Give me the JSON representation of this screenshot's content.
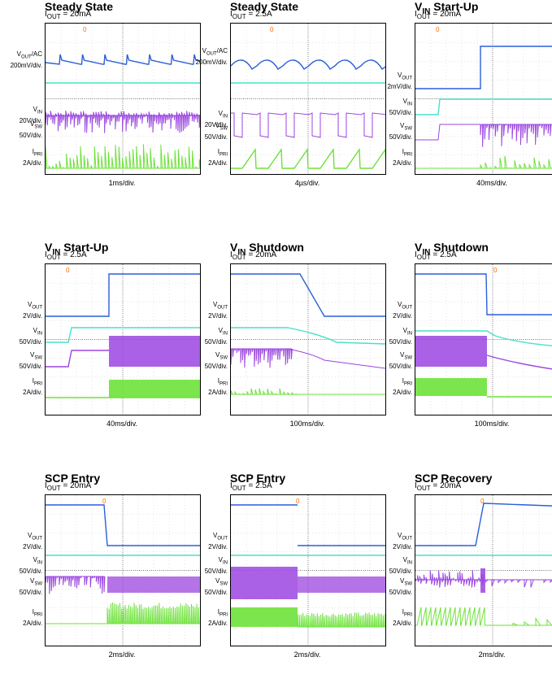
{
  "colors": {
    "vout": "#2b5fd9",
    "vin": "#49e0c8",
    "vsw": "#9b45e0",
    "ipri": "#6ee23a",
    "trigger": "#ff6a00",
    "grid": "#555555"
  },
  "chart_data": [
    {
      "type": "line",
      "title": "Steady State",
      "subtitle": "IOUT = 20mA",
      "timebase": "1ms/div.",
      "labels": {
        "vout": "VOUT/AC\n200mV/div.",
        "vin": "VIN\n20V/div.",
        "vsw": "VSW\n50V/div.",
        "ipri": "IPRI\n2A/div."
      },
      "pattern": "ss1"
    },
    {
      "type": "line",
      "title": "Steady State",
      "subtitle": "IOUT = 2.5A",
      "timebase": "4µs/div.",
      "labels": {
        "vout": "VOUT/AC\n200mV/div.",
        "vin": "VIN\n20V/div.",
        "vsw": "VSW\n50V/div.",
        "ipri": "IPRI\n2A/div."
      },
      "pattern": "ss2"
    },
    {
      "type": "line",
      "title": "VIN Start-Up",
      "subtitle": "IOUT = 20mA",
      "timebase": "40ms/div.",
      "labels": {
        "vout": "VOUT\n2mV/div.",
        "vin": "VIN\n50V/div.",
        "vsw": "VSW\n50V/div.",
        "ipri": "IPRI\n2A/div."
      },
      "pattern": "su1"
    },
    {
      "type": "line",
      "title": "VIN Start-Up",
      "subtitle": "IOUT = 2.5A",
      "timebase": "40ms/div.",
      "labels": {
        "vout": "VOUT\n2V/div.",
        "vin": "VIN\n50V/div.",
        "vsw": "VSW\n50V/div.",
        "ipri": "IPRI\n2A/div."
      },
      "pattern": "su2"
    },
    {
      "type": "line",
      "title": "VIN Shutdown",
      "subtitle": "IOUT = 20mA",
      "timebase": "100ms/div.",
      "labels": {
        "vout": "VOUT\n2V/div.",
        "vin": "VIN\n50V/div.",
        "vsw": "VSW\n50V/div.",
        "ipri": "IPRI\n2A/div."
      },
      "pattern": "sd1"
    },
    {
      "type": "line",
      "title": "VIN Shutdown",
      "subtitle": "IOUT = 2.5A",
      "timebase": "100ms/div.",
      "labels": {
        "vout": "VOUT\n2V/div.",
        "vin": "VIN\n50V/div.",
        "vsw": "VSW\n50V/div.",
        "ipri": "IPRI\n2A/div."
      },
      "pattern": "sd2"
    },
    {
      "type": "line",
      "title": "SCP Entry",
      "subtitle": "IOUT = 20mA",
      "timebase": "2ms/div.",
      "labels": {
        "vout": "VOUT\n2V/div.",
        "vin": "VIN\n50V/div.",
        "vsw": "VSW\n50V/div.",
        "ipri": "IPRI\n2A/div."
      },
      "pattern": "scp1"
    },
    {
      "type": "line",
      "title": "SCP Entry",
      "subtitle": "IOUT = 2.5A",
      "timebase": "2ms/div.",
      "labels": {
        "vout": "VOUT\n2V/div.",
        "vin": "VIN\n50V/div.",
        "vsw": "VSW\n50V/div.",
        "ipri": "IPRI\n2A/div."
      },
      "pattern": "scp2"
    },
    {
      "type": "line",
      "title": "SCP Recovery",
      "subtitle": "IOUT = 20mA",
      "timebase": "2ms/div.",
      "labels": {
        "vout": "VOUT\n2V/div.",
        "vin": "VIN\n50V/div.",
        "vsw": "VSW\n50V/div.",
        "ipri": "IPRI\n2A/div."
      },
      "pattern": "scpr"
    }
  ]
}
